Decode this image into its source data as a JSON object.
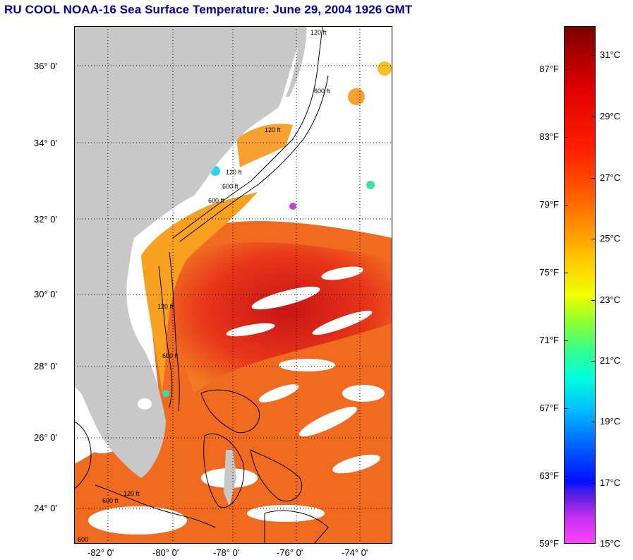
{
  "title": "RU COOL  NOAA-16  Sea Surface Temperature:  June 29, 2004 1926 GMT",
  "map": {
    "latitude_labels": [
      "36° 0'",
      "34° 0'",
      "32° 0'",
      "30° 0'",
      "28° 0'",
      "26° 0'",
      "24° 0'"
    ],
    "longitude_labels": [
      "-82° 0'",
      "-80° 0'",
      "-78° 0'",
      "-76° 0'",
      "-74° 0'"
    ],
    "contour_labels": [
      "120 ft",
      "600 ft",
      "120 ft",
      "600 ft",
      "120 ft",
      "600 ft",
      "120 ft",
      "600 ft",
      "120 ft",
      "600 ft",
      "600"
    ],
    "colors": {
      "land": "#c8c8c8",
      "cloud": "#ffffff",
      "warm": "#f05a1a",
      "hot": "#c81414",
      "frame": "#000000"
    }
  },
  "colorbar": {
    "fahrenheit_labels": [
      "87°F",
      "83°F",
      "79°F",
      "75°F",
      "71°F",
      "67°F",
      "63°F",
      "59°F"
    ],
    "celsius_labels": [
      "31°C",
      "29°C",
      "27°C",
      "25°C",
      "23°C",
      "21°C",
      "19°C",
      "17°C",
      "15°C"
    ],
    "range_celsius": [
      15,
      32
    ]
  }
}
